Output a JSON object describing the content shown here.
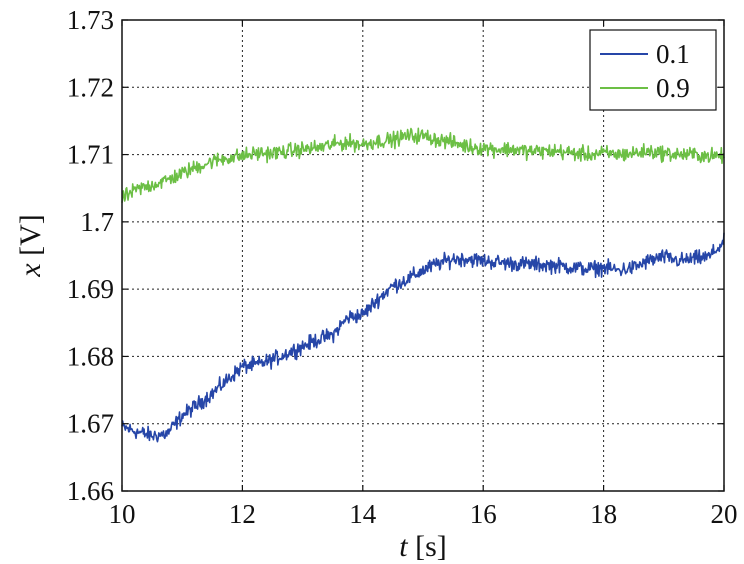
{
  "chart_data": {
    "type": "line",
    "title": "",
    "xlabel_var": "t",
    "xlabel_unit": " [s]",
    "ylabel_var": "x",
    "ylabel_unit": " [V]",
    "xlim": [
      10,
      20
    ],
    "ylim": [
      1.66,
      1.73
    ],
    "x_ticks": [
      10,
      12,
      14,
      16,
      18,
      20
    ],
    "y_ticks": [
      1.66,
      1.67,
      1.68,
      1.69,
      1.7,
      1.71,
      1.72,
      1.73
    ],
    "x_tick_labels": [
      "10",
      "12",
      "14",
      "16",
      "18",
      "20"
    ],
    "y_tick_labels": [
      "1.66",
      "1.67",
      "1.68",
      "1.69",
      "1.7",
      "1.71",
      "1.72",
      "1.73"
    ],
    "grid": true,
    "legend_position": "top-right",
    "series": [
      {
        "name": "0.1",
        "color": "#2646a8",
        "x": [
          10,
          10.25,
          10.5,
          10.75,
          11,
          11.25,
          11.5,
          11.75,
          12,
          12.25,
          12.5,
          12.75,
          13,
          13.25,
          13.5,
          13.75,
          14,
          14.25,
          14.5,
          14.75,
          15,
          15.25,
          15.5,
          15.75,
          16,
          16.25,
          16.5,
          16.75,
          17,
          17.25,
          17.5,
          17.75,
          18,
          18.25,
          18.5,
          18.75,
          19,
          19.25,
          19.5,
          19.75,
          20
        ],
        "y": [
          1.6695,
          1.6688,
          1.6682,
          1.6685,
          1.6712,
          1.6728,
          1.6745,
          1.6765,
          1.6785,
          1.6788,
          1.6795,
          1.6805,
          1.6815,
          1.6825,
          1.6832,
          1.6858,
          1.6862,
          1.6885,
          1.6905,
          1.6915,
          1.6928,
          1.6938,
          1.6945,
          1.6945,
          1.6942,
          1.694,
          1.6938,
          1.6937,
          1.6936,
          1.6935,
          1.6932,
          1.693,
          1.6932,
          1.6928,
          1.6932,
          1.6942,
          1.6948,
          1.6942,
          1.6945,
          1.6948,
          1.697
        ]
      },
      {
        "name": "0.9",
        "color": "#6cbf45",
        "x": [
          10,
          10.25,
          10.5,
          10.75,
          11,
          11.25,
          11.5,
          11.75,
          12,
          12.25,
          12.5,
          12.75,
          13,
          13.25,
          13.5,
          13.75,
          14,
          14.25,
          14.5,
          14.75,
          15,
          15.25,
          15.5,
          15.75,
          16,
          16.25,
          16.5,
          16.75,
          17,
          17.25,
          17.5,
          17.75,
          18,
          18.25,
          18.5,
          18.75,
          19,
          19.25,
          19.5,
          19.75,
          20
        ],
        "y": [
          1.7035,
          1.7048,
          1.7055,
          1.7062,
          1.7072,
          1.7082,
          1.709,
          1.7095,
          1.7098,
          1.7102,
          1.7102,
          1.7105,
          1.7108,
          1.711,
          1.7115,
          1.7118,
          1.7115,
          1.712,
          1.7122,
          1.7128,
          1.7128,
          1.7122,
          1.7118,
          1.7112,
          1.711,
          1.7108,
          1.7108,
          1.7105,
          1.7105,
          1.7105,
          1.7102,
          1.71,
          1.7102,
          1.71,
          1.7102,
          1.7105,
          1.7102,
          1.71,
          1.71,
          1.7098,
          1.7098
        ]
      }
    ]
  }
}
